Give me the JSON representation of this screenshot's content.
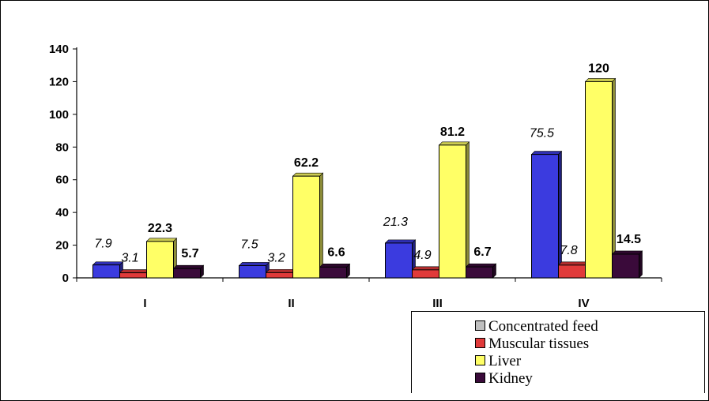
{
  "chart_data": {
    "type": "bar",
    "categories": [
      "I",
      "II",
      "III",
      "IV"
    ],
    "series": [
      {
        "name": "Concentrated feed",
        "values": [
          7.9,
          7.5,
          21.3,
          75.5
        ],
        "labels": [
          "7.9",
          "7.5",
          "21.3",
          "75.5"
        ],
        "color": "#3b3bdf",
        "label_style": "italic"
      },
      {
        "name": "Muscular tissues",
        "values": [
          3.1,
          3.2,
          4.9,
          7.8
        ],
        "labels": [
          "3.1",
          "3.2",
          "4.9",
          "7.8"
        ],
        "color": "#e03a3a",
        "label_style": "italic"
      },
      {
        "name": "Liver",
        "values": [
          22.3,
          62.2,
          81.2,
          120
        ],
        "labels": [
          "22.3",
          "62.2",
          "81.2",
          "120"
        ],
        "color": "#ffff66",
        "label_style": "bold"
      },
      {
        "name": "Kidney",
        "values": [
          5.7,
          6.6,
          6.7,
          14.5
        ],
        "labels": [
          "5.7",
          "6.6",
          "6.7",
          "14.5"
        ],
        "color": "#3a0a3a",
        "label_style": "bold"
      }
    ],
    "legend_swatches": [
      "#c0c0c0",
      "#e03a3a",
      "#ffff66",
      "#3a0a3a"
    ],
    "yticks": [
      "0",
      "20",
      "40",
      "60",
      "80",
      "100",
      "120",
      "140"
    ],
    "ylim": [
      0,
      140
    ],
    "legend_position": "bottom-right",
    "grid": false
  }
}
